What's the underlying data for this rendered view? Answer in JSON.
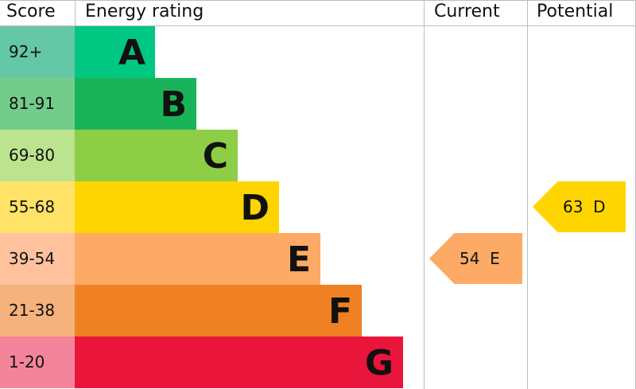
{
  "headers": {
    "score": "Score",
    "rating": "Energy rating",
    "current": "Current",
    "potential": "Potential"
  },
  "chart_data": {
    "type": "bar",
    "categories": [
      "A",
      "B",
      "C",
      "D",
      "E",
      "F",
      "G"
    ],
    "score_ranges": [
      "92+",
      "81-91",
      "69-80",
      "55-68",
      "39-54",
      "21-38",
      "1-20"
    ],
    "bar_colors": [
      "#00c781",
      "#19b459",
      "#8dce46",
      "#ffd500",
      "#fcaa65",
      "#ef8023",
      "#e9153b"
    ],
    "score_colors": [
      "#64c8a6",
      "#74cc8a",
      "#bce38e",
      "#ffe266",
      "#ffc29c",
      "#f5b27c",
      "#f4849a"
    ],
    "current": {
      "value": 54,
      "band": "E",
      "label": "54  E",
      "color": "#fcaa65"
    },
    "potential": {
      "value": 63,
      "band": "D",
      "label": "63  D",
      "color": "#ffd500"
    }
  }
}
